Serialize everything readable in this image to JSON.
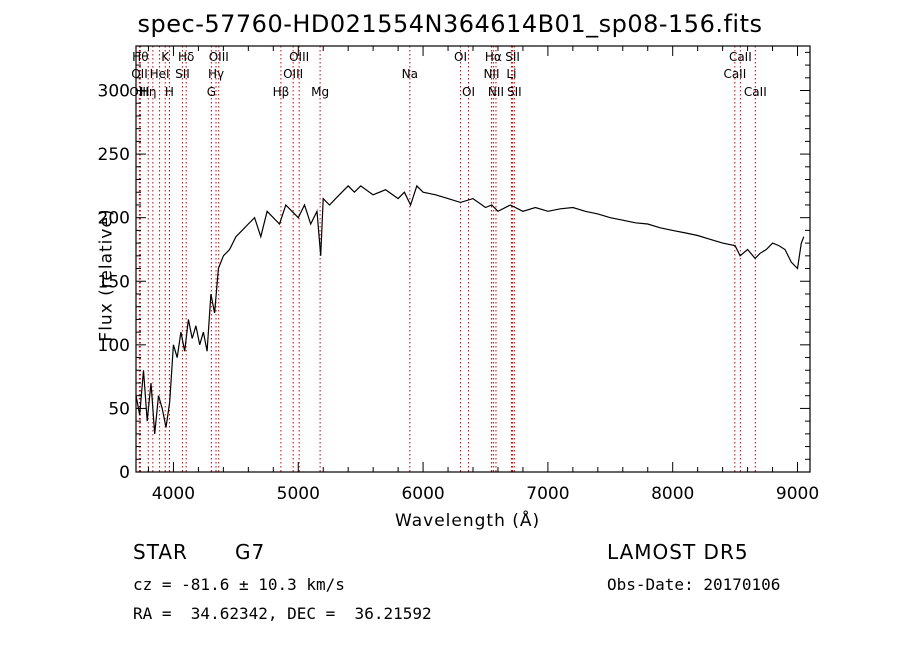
{
  "chart_data": {
    "type": "line",
    "title": "spec-57760-HD021554N364614B01_sp08-156.fits",
    "xlabel": "Wavelength (Å)",
    "ylabel": "Flux (relative)",
    "xlim": [
      3700,
      9100
    ],
    "ylim": [
      0,
      335
    ],
    "xticks": [
      4000,
      5000,
      6000,
      7000,
      8000,
      9000
    ],
    "yticks": [
      0,
      50,
      100,
      150,
      200,
      250,
      300
    ],
    "grid": false,
    "line_color": "#000000",
    "marker_color": "#cc0000",
    "series": [
      {
        "x": [
          3700,
          3730,
          3760,
          3790,
          3820,
          3850,
          3880,
          3910,
          3940,
          3970,
          4000,
          4030,
          4060,
          4090,
          4120,
          4150,
          4180,
          4210,
          4240,
          4270,
          4300,
          4330,
          4360,
          4400,
          4450,
          4500,
          4550,
          4600,
          4650,
          4700,
          4750,
          4800,
          4850,
          4900,
          4950,
          5000,
          5050,
          5100,
          5150,
          5180,
          5200,
          5250,
          5300,
          5350,
          5400,
          5450,
          5500,
          5600,
          5700,
          5800,
          5850,
          5900,
          5950,
          6000,
          6100,
          6200,
          6300,
          6400,
          6500,
          6550,
          6600,
          6700,
          6800,
          6900,
          7000,
          7100,
          7200,
          7300,
          7400,
          7500,
          7600,
          7700,
          7800,
          7900,
          8000,
          8100,
          8200,
          8300,
          8400,
          8500,
          8540,
          8600,
          8660,
          8700,
          8750,
          8800,
          8850,
          8900,
          8950,
          9000,
          9030,
          9050
        ],
        "values": [
          60,
          45,
          80,
          40,
          70,
          30,
          60,
          50,
          35,
          55,
          100,
          90,
          110,
          95,
          120,
          105,
          115,
          100,
          110,
          95,
          140,
          125,
          160,
          170,
          175,
          185,
          190,
          195,
          200,
          185,
          205,
          200,
          195,
          210,
          205,
          200,
          210,
          195,
          205,
          170,
          215,
          210,
          215,
          220,
          225,
          220,
          225,
          218,
          222,
          215,
          220,
          210,
          225,
          220,
          218,
          215,
          212,
          215,
          208,
          210,
          205,
          210,
          205,
          208,
          205,
          207,
          208,
          205,
          203,
          200,
          198,
          196,
          195,
          192,
          190,
          188,
          186,
          183,
          180,
          178,
          170,
          175,
          168,
          172,
          175,
          180,
          178,
          175,
          165,
          160,
          180,
          185
        ]
      }
    ],
    "lines": [
      {
        "wl": 3735,
        "labels": [
          "Hθ"
        ],
        "levels": [
          0
        ]
      },
      {
        "wl": 3728,
        "labels": [
          "OII"
        ],
        "levels": [
          1
        ]
      },
      {
        "wl": 3727,
        "labels": [
          "OIII"
        ],
        "levels": [
          2
        ]
      },
      {
        "wl": 3798,
        "labels": [
          "Hη"
        ],
        "levels": [
          2
        ]
      },
      {
        "wl": 3835,
        "labels": [],
        "levels": []
      },
      {
        "wl": 3889,
        "labels": [
          "HeI"
        ],
        "levels": [
          1
        ]
      },
      {
        "wl": 3934,
        "labels": [
          "K"
        ],
        "levels": [
          0
        ]
      },
      {
        "wl": 3968,
        "labels": [
          "H"
        ],
        "levels": [
          2
        ]
      },
      {
        "wl": 4072,
        "labels": [
          "SII"
        ],
        "levels": [
          1
        ]
      },
      {
        "wl": 4102,
        "labels": [
          "Hδ"
        ],
        "levels": [
          0
        ]
      },
      {
        "wl": 4304,
        "labels": [
          "G"
        ],
        "levels": [
          2
        ]
      },
      {
        "wl": 4341,
        "labels": [
          "Hγ"
        ],
        "levels": [
          1
        ]
      },
      {
        "wl": 4363,
        "labels": [
          "OIII"
        ],
        "levels": [
          0
        ]
      },
      {
        "wl": 4861,
        "labels": [
          "Hβ"
        ],
        "levels": [
          2
        ]
      },
      {
        "wl": 4959,
        "labels": [
          "OIII"
        ],
        "levels": [
          1
        ]
      },
      {
        "wl": 5007,
        "labels": [
          "OIII"
        ],
        "levels": [
          0
        ]
      },
      {
        "wl": 5175,
        "labels": [
          "Mg"
        ],
        "levels": [
          2
        ]
      },
      {
        "wl": 5894,
        "labels": [
          "Na"
        ],
        "levels": [
          1
        ]
      },
      {
        "wl": 6300,
        "labels": [
          "OI"
        ],
        "levels": [
          0
        ]
      },
      {
        "wl": 6364,
        "labels": [
          "OI"
        ],
        "levels": [
          2
        ]
      },
      {
        "wl": 6548,
        "labels": [
          "NII"
        ],
        "levels": [
          1
        ]
      },
      {
        "wl": 6563,
        "labels": [
          "Hα"
        ],
        "levels": [
          0
        ]
      },
      {
        "wl": 6584,
        "labels": [
          "NII"
        ],
        "levels": [
          2
        ]
      },
      {
        "wl": 6708,
        "labels": [
          "Li"
        ],
        "levels": [
          1
        ]
      },
      {
        "wl": 6717,
        "labels": [
          "SII"
        ],
        "levels": [
          0
        ]
      },
      {
        "wl": 6731,
        "labels": [
          "SII"
        ],
        "levels": [
          2
        ]
      },
      {
        "wl": 8498,
        "labels": [
          "CaII"
        ],
        "levels": [
          1
        ]
      },
      {
        "wl": 8542,
        "labels": [
          "CaII"
        ],
        "levels": [
          0
        ]
      },
      {
        "wl": 8662,
        "labels": [
          "CaII"
        ],
        "levels": [
          2
        ]
      }
    ]
  },
  "info": {
    "object_type": "STAR",
    "subclass": "G7",
    "survey": "LAMOST DR5",
    "cz": "cz = -81.6 ± 10.3 km/s",
    "obs_date": "Obs-Date: 20170106",
    "radec": "RA =  34.62342, DEC =  36.21592"
  }
}
